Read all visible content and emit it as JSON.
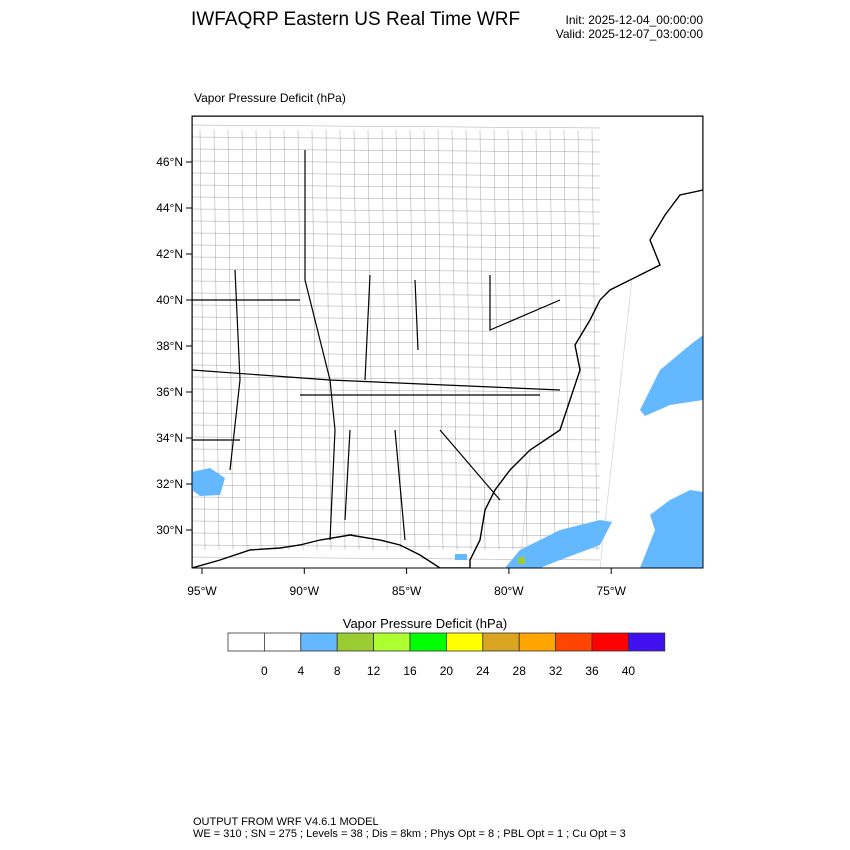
{
  "header": {
    "title": "IWFAQRP Eastern US Real Time WRF",
    "init": "Init: 2025-12-04_00:00:00",
    "valid": "Valid: 2025-12-07_03:00:00"
  },
  "chart_data": {
    "type": "heatmap",
    "title": "Vapor Pressure Deficit   (hPa)",
    "colorbar_title": "Vapor Pressure Deficit  (hPa)",
    "lat_ticks": [
      "46°N",
      "44°N",
      "42°N",
      "40°N",
      "38°N",
      "36°N",
      "34°N",
      "32°N",
      "30°N"
    ],
    "lon_ticks": [
      "95°W",
      "90°W",
      "85°W",
      "80°W",
      "75°W"
    ],
    "levels": [
      "0",
      "4",
      "8",
      "12",
      "16",
      "20",
      "24",
      "28",
      "32",
      "36",
      "40"
    ],
    "colors": [
      "#ffffff",
      "#ffffff",
      "#63b8ff",
      "#9acd32",
      "#adff2f",
      "#00ff00",
      "#ffff00",
      "#daa520",
      "#ffa500",
      "#ff4500",
      "#ff0000",
      "#4010f0"
    ],
    "regions_with_4_8": [
      "Atlantic east of Virginia/NC",
      "Atlantic off Georgia/Florida",
      "Northeast Texas/Louisiana border",
      "Southeast Atlantic offshore"
    ],
    "regions_with_8_12": [
      "Small patch off northeast Florida"
    ]
  },
  "footer": {
    "line1": "OUTPUT FROM WRF V4.6.1 MODEL",
    "line2": "WE = 310 ; SN = 275 ; Levels = 38 ; Dis = 8km ; Phys Opt = 8 ; PBL Opt = 1 ; Cu Opt = 3"
  }
}
